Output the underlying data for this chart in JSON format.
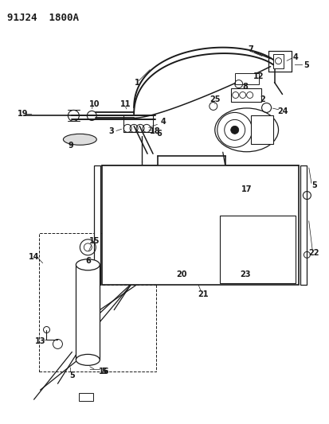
{
  "title": "91J24  1800A",
  "title_fontsize": 9,
  "bg_color": "#ffffff",
  "line_color": "#1a1a1a",
  "label_fontsize": 7,
  "fig_width": 4.14,
  "fig_height": 5.33,
  "dpi": 100
}
